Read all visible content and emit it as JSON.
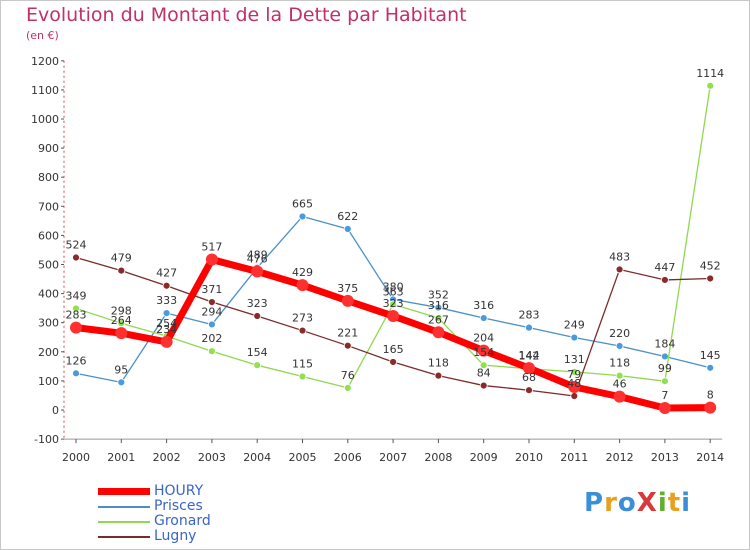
{
  "header": {
    "title": "Evolution du Montant de la Dette par Habitant",
    "subtitle": "(en €)"
  },
  "logo": {
    "text": "ProXiti",
    "colors": [
      "#3a8fd8",
      "#e8a020",
      "#3a8fd8",
      "#d83a3a",
      "#60b030",
      "#e8a020",
      "#3a8fd8"
    ]
  },
  "chart_data": {
    "type": "line",
    "title": "Evolution du Montant de la Dette par Habitant",
    "subtitle": "(en €)",
    "xlabel": "",
    "ylabel": "",
    "categories": [
      "2000",
      "2001",
      "2002",
      "2003",
      "2004",
      "2005",
      "2006",
      "2007",
      "2008",
      "2009",
      "2010",
      "2011",
      "2012",
      "2013",
      "2014"
    ],
    "ylim": [
      -100,
      1200
    ],
    "yticks": [
      -100,
      0,
      100,
      200,
      300,
      400,
      500,
      600,
      700,
      800,
      900,
      1000,
      1100,
      1200
    ],
    "grid": false,
    "legend_position": "bottom-left",
    "series": [
      {
        "name": "HOURY",
        "color": "#ff0000",
        "values": [
          283,
          264,
          234,
          517,
          476,
          429,
          375,
          323,
          267,
          204,
          144,
          79,
          46,
          7,
          8
        ]
      },
      {
        "name": "Prisces",
        "color": "#4a90c8",
        "values": [
          126,
          95,
          333,
          294,
          489,
          665,
          622,
          380,
          352,
          316,
          283,
          249,
          220,
          184,
          145
        ]
      },
      {
        "name": "Gronard",
        "color": "#90d850",
        "values": [
          349,
          298,
          254,
          202,
          154,
          115,
          76,
          363,
          316,
          154,
          142,
          131,
          118,
          99,
          1114
        ]
      },
      {
        "name": "Lugny",
        "color": "#7a2a2a",
        "values": [
          524,
          479,
          427,
          371,
          323,
          273,
          221,
          165,
          118,
          84,
          68,
          48,
          483,
          447,
          452
        ]
      }
    ]
  }
}
